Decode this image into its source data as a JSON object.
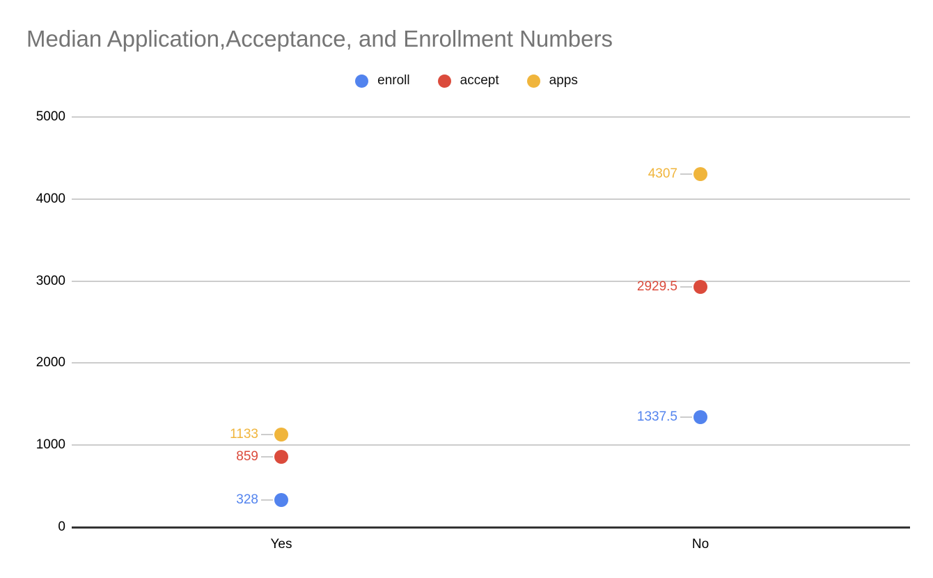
{
  "page": {
    "background": "#ffffff"
  },
  "colors": {
    "title_text": "#757575",
    "axis_text": "#000000",
    "gridline": "#cccccc",
    "baseline": "#333333",
    "callout_line": "#cccccc",
    "series_blue": "#5283ee",
    "series_red": "#db4b3c",
    "series_yellow": "#f0b53c"
  },
  "chart_data": {
    "type": "scatter",
    "title": "Median Application,Acceptance, and Enrollment Numbers",
    "categories": [
      "Yes",
      "No"
    ],
    "series": [
      {
        "name": "enroll",
        "color": "#5283ee",
        "values": [
          328,
          1337.5
        ],
        "labels": [
          "328",
          "1337.5"
        ]
      },
      {
        "name": "accept",
        "color": "#db4b3c",
        "values": [
          859,
          2929.5
        ],
        "labels": [
          "859",
          "2929.5"
        ]
      },
      {
        "name": "apps",
        "color": "#f0b53c",
        "values": [
          1133,
          4307
        ],
        "labels": [
          "1133",
          "4307"
        ]
      }
    ],
    "xlabel": "",
    "ylabel": "",
    "ylim": [
      0,
      5000
    ],
    "yticks": [
      0,
      1000,
      2000,
      3000,
      4000,
      5000
    ],
    "ytick_labels": [
      "0",
      "1000",
      "2000",
      "3000",
      "4000",
      "5000"
    ],
    "grid": true,
    "legend_position": "top",
    "data_labels": true
  }
}
